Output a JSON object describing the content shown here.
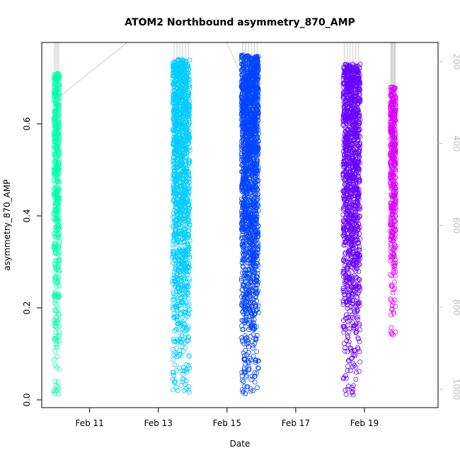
{
  "chart_data": {
    "type": "scatter",
    "title": "ATOM2 Northbound asymmetry_870_AMP",
    "xlabel": "Date",
    "ylabel": "asymmetry_870_AMP",
    "x_axis_type": "date",
    "xlim": [
      "2019-02-09T20:00",
      "2019-02-20T22:00"
    ],
    "ylim": [
      0,
      0.75
    ],
    "x_ticks": [
      {
        "value": "2019-02-11",
        "label": "Feb 11"
      },
      {
        "value": "2019-02-13",
        "label": "Feb 13"
      },
      {
        "value": "2019-02-15",
        "label": "Feb 15"
      },
      {
        "value": "2019-02-17",
        "label": "Feb 17"
      },
      {
        "value": "2019-02-19",
        "label": "Feb 19"
      }
    ],
    "y_ticks": [
      "0.0",
      "0.2",
      "0.4",
      "0.6"
    ],
    "y2_ticks": [
      "200",
      "400",
      "600",
      "800",
      "1000"
    ],
    "y2_reversed": true,
    "y2_color": "#bebebe",
    "clusters": [
      {
        "start": "2019-02-09T23:00",
        "end": "2019-02-10T03:00",
        "color": "#00ffaa",
        "y_min": 0.01,
        "y_max": 0.71,
        "y_mean": 0.5
      },
      {
        "start": "2019-02-13T10:00",
        "end": "2019-02-13T22:00",
        "color": "#00ccff",
        "y_min": 0.01,
        "y_max": 0.74,
        "y_mean": 0.42
      },
      {
        "start": "2019-02-15T10:00",
        "end": "2019-02-15T22:00",
        "color": "#0044ff",
        "y_min": 0.01,
        "y_max": 0.75,
        "y_mean": 0.42
      },
      {
        "start": "2019-02-18T09:00",
        "end": "2019-02-18T21:00",
        "color": "#6600ff",
        "y_min": 0.01,
        "y_max": 0.73,
        "y_mean": 0.42
      },
      {
        "start": "2019-02-19T18:00",
        "end": "2019-02-19T22:00",
        "color": "#dd00ff",
        "y_min": 0.14,
        "y_max": 0.68,
        "y_mean": 0.5
      }
    ],
    "grey_line_color": "#bebebe"
  }
}
